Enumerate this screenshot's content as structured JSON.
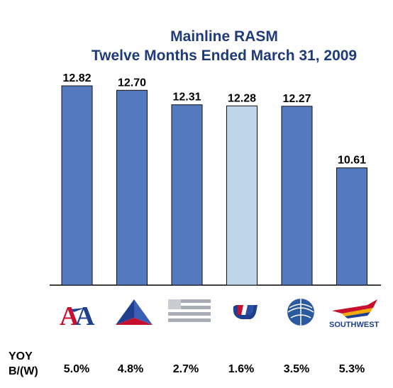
{
  "chart_data": {
    "type": "bar",
    "title": "Mainline RASM",
    "subtitle": "Twelve Months Ended March 31, 2009",
    "categories": [
      "AA",
      "Delta",
      "US Airways",
      "United",
      "Continental",
      "Southwest"
    ],
    "values": [
      12.82,
      12.7,
      12.31,
      12.28,
      12.27,
      10.61
    ],
    "value_labels": [
      "12.82",
      "12.70",
      "12.31",
      "12.28",
      "12.27",
      "10.61"
    ],
    "highlight_index": 3,
    "ylim": [
      7.45,
      12.82
    ],
    "colors": {
      "bar": "#5479be",
      "bar_highlight": "#bfd6ea",
      "bar_stroke": "#111111",
      "title": "#1f3b7a"
    },
    "yoy_label_line1": "YOY",
    "yoy_label_line2": "B/(W)",
    "yoy_values": [
      "5.0%",
      "4.8%",
      "2.7%",
      "1.6%",
      "3.5%",
      "5.3%"
    ],
    "logo_text_southwest": "SOUTHWEST"
  }
}
